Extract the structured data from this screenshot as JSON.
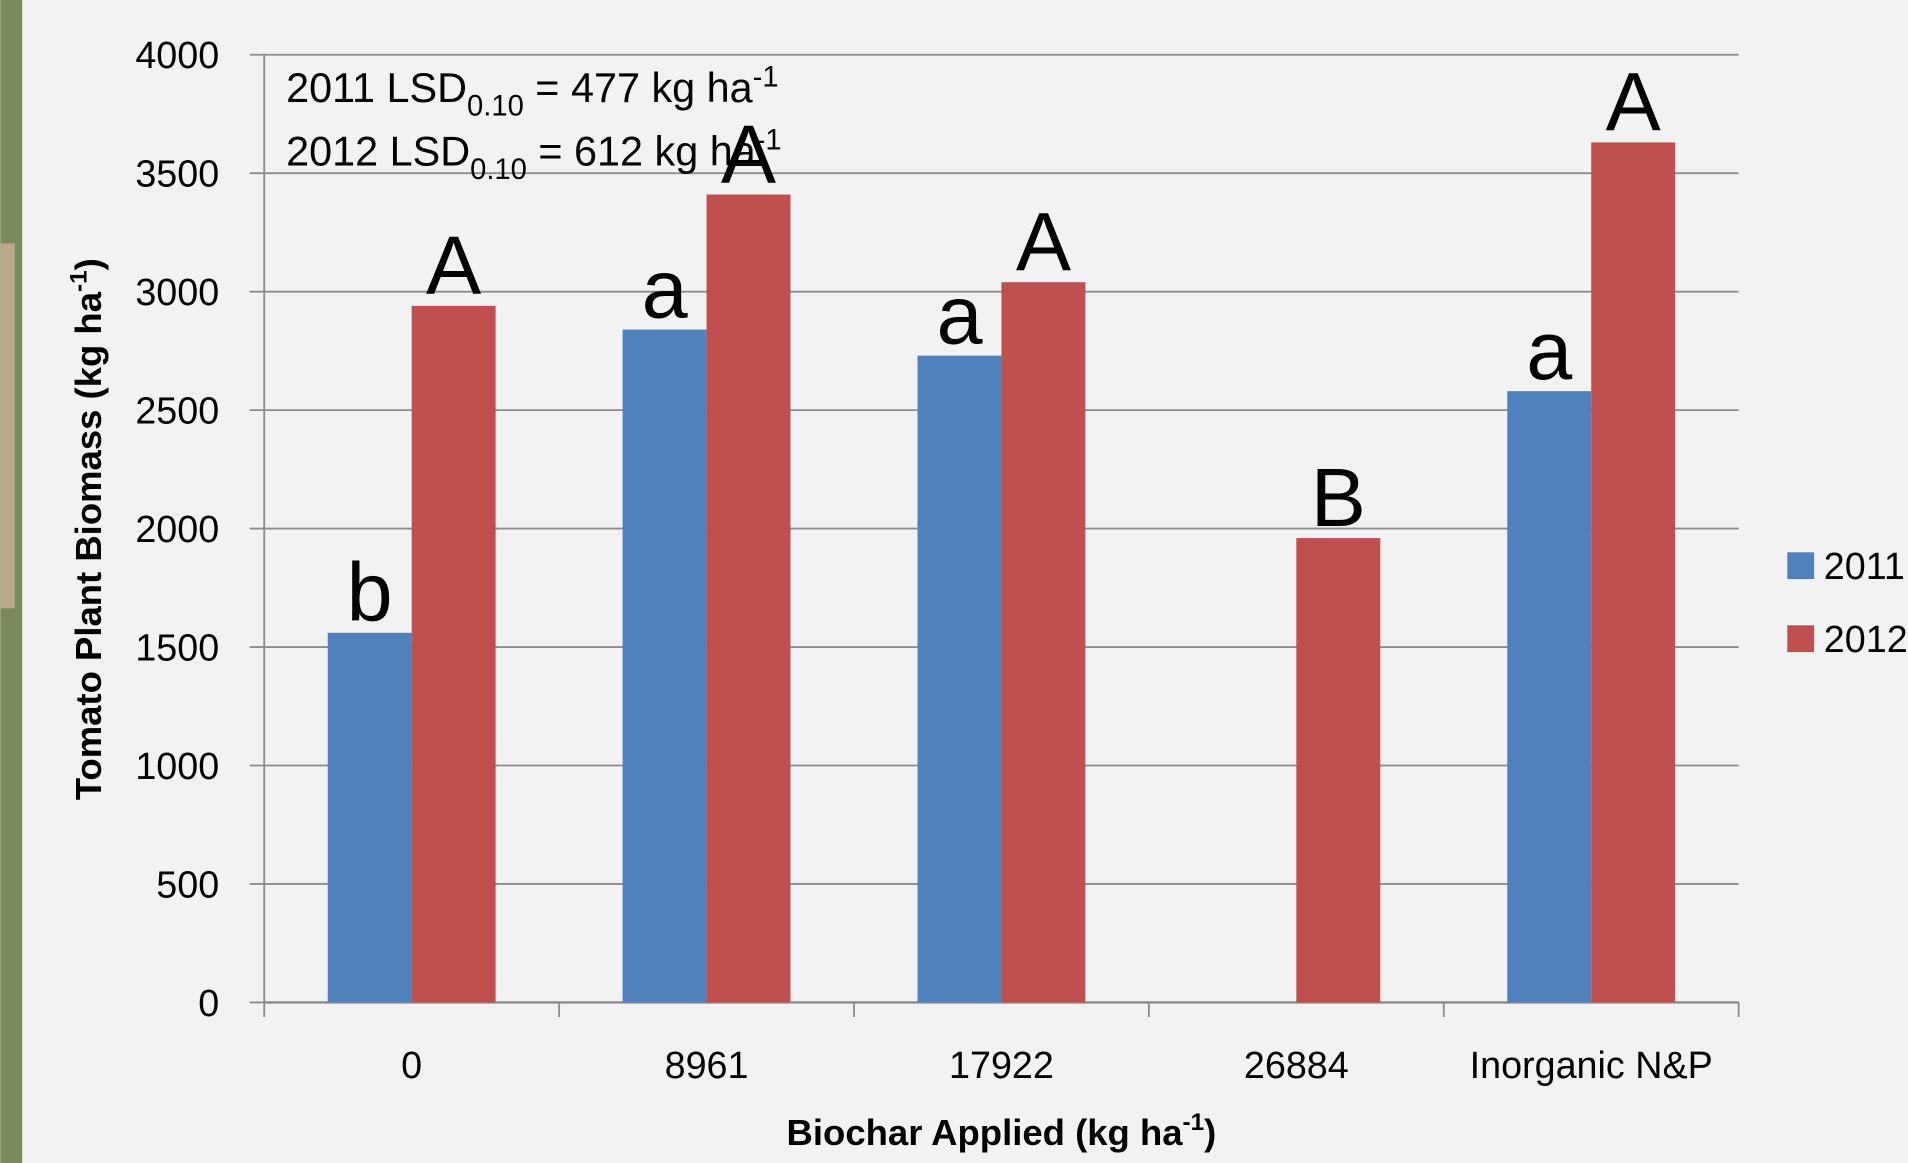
{
  "chart_data": {
    "type": "bar",
    "y_label": {
      "text": "Tomato Plant Biomass (kg ha",
      "sup": "-1",
      "end": ")"
    },
    "x_label": {
      "text": "Biochar Applied (kg ha",
      "sup": "-1",
      "end": ")"
    },
    "annotations": [
      {
        "text": "2011 LSD",
        "sub": "0.10",
        "rest": " = 477 kg ha",
        "sup": "-1"
      },
      {
        "text": "2012 LSD",
        "sub": "0.10",
        "rest": " = 612 kg ha",
        "sup": "-1"
      }
    ],
    "categories": [
      "0",
      "8961",
      "17922",
      "26884",
      "Inorganic N&P"
    ],
    "series": [
      {
        "name": "2011",
        "color": "#4f81bd",
        "values": [
          1560,
          2840,
          2730,
          null,
          2580
        ],
        "letters": [
          "b",
          "a",
          "a",
          null,
          "a"
        ]
      },
      {
        "name": "2012",
        "color": "#c0504d",
        "values": [
          2940,
          3410,
          3040,
          1960,
          3630
        ],
        "letters": [
          "A",
          "A",
          "A",
          "B",
          "A"
        ]
      }
    ],
    "ylim": [
      0,
      4000
    ],
    "yticks": [
      0,
      500,
      1000,
      1500,
      2000,
      2500,
      3000,
      3500,
      4000
    ],
    "grid": true,
    "legend": "right"
  }
}
